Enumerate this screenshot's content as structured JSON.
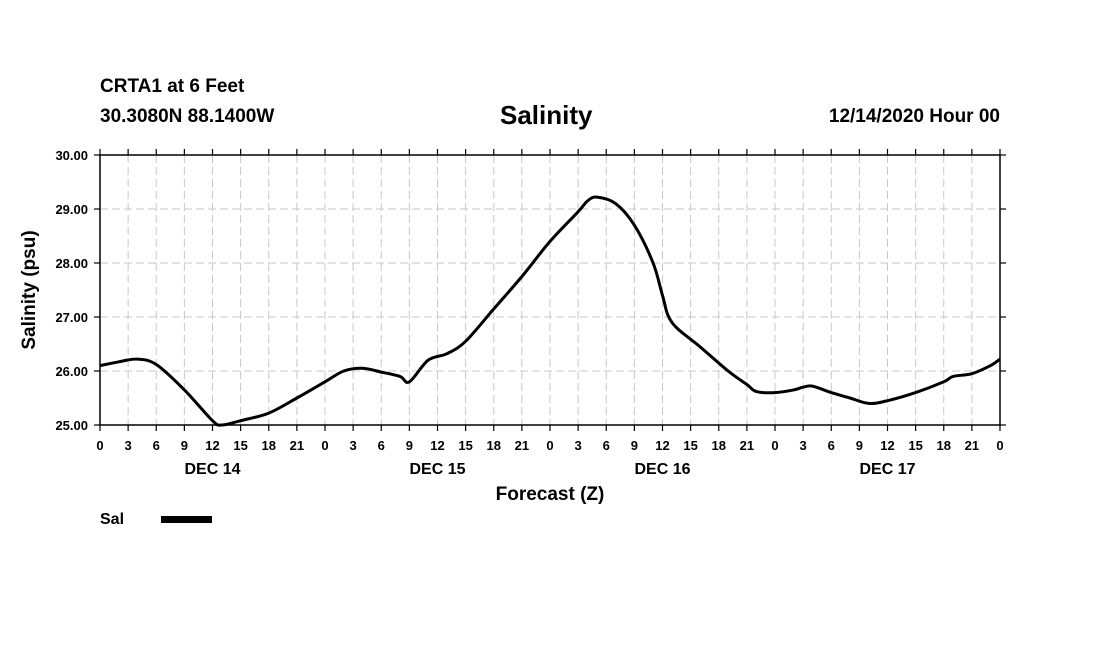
{
  "header": {
    "station": "CRTA1 at 6 Feet",
    "coords": "30.3080N 88.1400W",
    "title": "Salinity",
    "timestamp": "12/14/2020 Hour 00"
  },
  "chart_data": {
    "type": "line",
    "title": "Salinity",
    "xlabel": "Forecast (Z)",
    "ylabel": "Salinity (psu)",
    "xlim": [
      0,
      96
    ],
    "ylim": [
      25,
      30
    ],
    "y_ticks": [
      "25.00",
      "26.00",
      "27.00",
      "28.00",
      "29.00",
      "30.00"
    ],
    "x_tick_hours": [
      0,
      3,
      6,
      9,
      12,
      15,
      18,
      21,
      24,
      27,
      30,
      33,
      36,
      39,
      42,
      45,
      48,
      51,
      54,
      57,
      60,
      63,
      66,
      69,
      72,
      75,
      78,
      81,
      84,
      87,
      90,
      93,
      96
    ],
    "x_tick_labels": [
      "0",
      "3",
      "6",
      "9",
      "12",
      "15",
      "18",
      "21",
      "0",
      "3",
      "6",
      "9",
      "12",
      "15",
      "18",
      "21",
      "0",
      "3",
      "6",
      "9",
      "12",
      "15",
      "18",
      "21",
      "0",
      "3",
      "6",
      "9",
      "12",
      "15",
      "18",
      "21",
      "0"
    ],
    "day_labels": [
      {
        "text": "DEC 14",
        "hour": 12
      },
      {
        "text": "DEC 15",
        "hour": 36
      },
      {
        "text": "DEC 16",
        "hour": 60
      },
      {
        "text": "DEC 17",
        "hour": 84
      }
    ],
    "grid": true,
    "legend_position": "bottom-left",
    "series": [
      {
        "name": "Sal",
        "color": "#000000",
        "points": [
          [
            0,
            26.1
          ],
          [
            2,
            26.17
          ],
          [
            4,
            26.22
          ],
          [
            6,
            26.12
          ],
          [
            9,
            25.65
          ],
          [
            12,
            25.08
          ],
          [
            13,
            25.0
          ],
          [
            15,
            25.08
          ],
          [
            18,
            25.22
          ],
          [
            21,
            25.5
          ],
          [
            24,
            25.8
          ],
          [
            26,
            26.0
          ],
          [
            28,
            26.05
          ],
          [
            30,
            25.98
          ],
          [
            32,
            25.9
          ],
          [
            33,
            25.8
          ],
          [
            35,
            26.2
          ],
          [
            37,
            26.32
          ],
          [
            39,
            26.55
          ],
          [
            42,
            27.15
          ],
          [
            45,
            27.75
          ],
          [
            48,
            28.4
          ],
          [
            51,
            28.95
          ],
          [
            52,
            29.15
          ],
          [
            53,
            29.22
          ],
          [
            55,
            29.1
          ],
          [
            57,
            28.7
          ],
          [
            59,
            28.0
          ],
          [
            60,
            27.4
          ],
          [
            61,
            26.9
          ],
          [
            64,
            26.45
          ],
          [
            67,
            26.0
          ],
          [
            69,
            25.75
          ],
          [
            70,
            25.62
          ],
          [
            72,
            25.6
          ],
          [
            74,
            25.65
          ],
          [
            75,
            25.7
          ],
          [
            76,
            25.72
          ],
          [
            78,
            25.6
          ],
          [
            80,
            25.5
          ],
          [
            82,
            25.4
          ],
          [
            84,
            25.45
          ],
          [
            87,
            25.6
          ],
          [
            90,
            25.8
          ],
          [
            91,
            25.9
          ],
          [
            93,
            25.95
          ],
          [
            95,
            26.1
          ],
          [
            96,
            26.22
          ]
        ]
      }
    ]
  }
}
